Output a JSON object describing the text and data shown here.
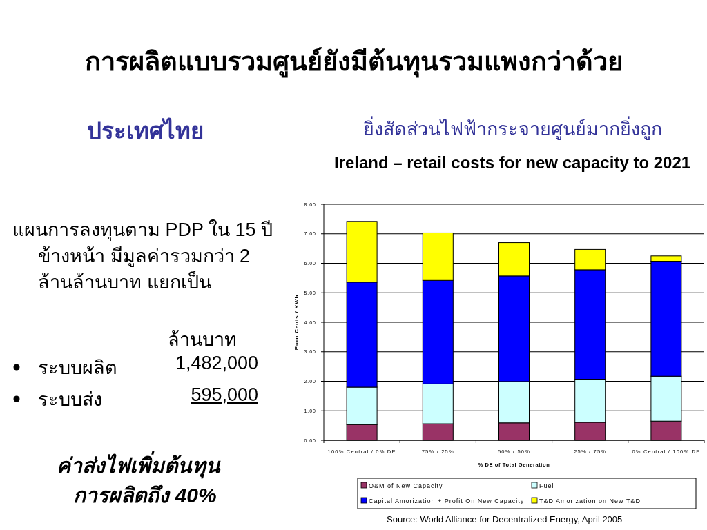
{
  "chart_data": {
    "type": "bar",
    "stacked": true,
    "title": "การผลิตแบบรวมศูนย์ยังมีต้นทุนรวมแพงกว่าด้วย",
    "subtitle": "Ireland – retail costs for new capacity to 2021",
    "xlabel": "% DE of Total Generation",
    "ylabel": "Euro Cents / KWh",
    "categories": [
      "100% Central / 0% DE",
      "75%  / 25%",
      "50% / 50%",
      "25% / 75%",
      "0% Central / 100% DE"
    ],
    "series": [
      {
        "name": "O&M of New Capacity",
        "color": "#993366",
        "values": [
          0.53,
          0.56,
          0.59,
          0.61,
          0.65
        ]
      },
      {
        "name": "Fuel",
        "color": "#ccffff",
        "values": [
          1.27,
          1.35,
          1.4,
          1.46,
          1.52
        ]
      },
      {
        "name": "Capital Amorization + Profit On New Capacity",
        "color": "#0000ff",
        "values": [
          3.56,
          3.51,
          3.58,
          3.71,
          3.9
        ]
      },
      {
        "name": "T&D Amorization on New T&D",
        "color": "#ffff00",
        "values": [
          2.06,
          1.61,
          1.13,
          0.69,
          0.18
        ]
      }
    ],
    "ylim": [
      0,
      8
    ],
    "yticks": [
      {
        "value": 0,
        "label": "0.00"
      },
      {
        "value": 1,
        "label": "1.00"
      },
      {
        "value": 2,
        "label": "2.00"
      },
      {
        "value": 3,
        "label": "3.00"
      },
      {
        "value": 4,
        "label": "4.00"
      },
      {
        "value": 5,
        "label": "5.00"
      },
      {
        "value": 6,
        "label": "6.00"
      },
      {
        "value": 7,
        "label": "7.00"
      },
      {
        "value": 8,
        "label": "8.00"
      }
    ],
    "grid": "y",
    "legend": "bottom",
    "annotations": [
      "ประเทศไทย",
      "ยิ่งสัดส่วนไฟฟ้ากระจายศูนย์มากยิ่งถูก",
      "แผนการลงทุนตาม PDP ใน 15 ปีข้างหน้า  มีมูลค่ารวมกว่า 2 ล้านล้านบาท แยกเป็น",
      "ล้านบาท",
      "ระบบผลิต",
      "1,482,000",
      "ระบบส่ง",
      "595,000",
      "ค่าส่งไฟเพิ่มต้นทุน",
      "การผลิตถึง 40%",
      "Source: World Alliance for Decentralized Energy, April 2005"
    ]
  }
}
